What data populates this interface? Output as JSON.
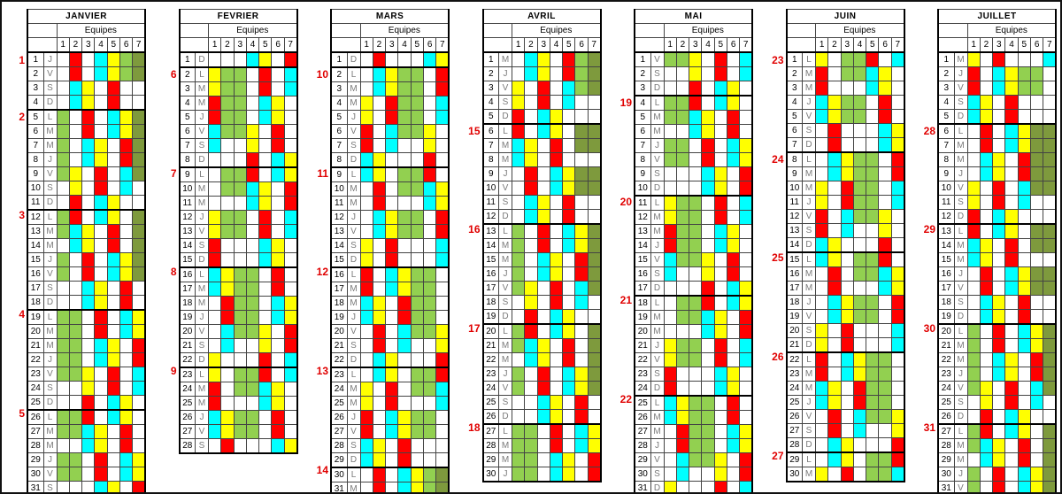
{
  "document": {
    "type": "shift-planning-calendar",
    "equipes_label": "Equipes",
    "equipe_numbers": [
      "1",
      "2",
      "3",
      "4",
      "5",
      "6",
      "7"
    ]
  },
  "colors": {
    "W": "#FFFFFF",
    "R": "#FF0000",
    "Y": "#FFFF00",
    "C": "#00FFFF",
    "G": "#92D050",
    "O": "#7E9A3D",
    "week_number": "#E00000",
    "day_letter": "#7A7A7A",
    "grid": "#444444"
  },
  "months": [
    {
      "name": "JANVIER",
      "letters": "JVSDLMMJVSDLMMJVSDLMMJVSDLMMJVS",
      "week_numbers": [
        [
          1,
          1
        ],
        [
          2,
          5
        ],
        [
          3,
          12
        ],
        [
          4,
          19
        ],
        [
          5,
          26
        ]
      ],
      "rows": [
        "WRWCYGO",
        "WRWCYGO",
        "WCYWRWW",
        "WCYWRWW",
        "GWRWCYO",
        "GWRWCYO",
        "GWCYWRO",
        "GWCYWRO",
        "GYWRWCO",
        "WYWRWCW",
        "WRWCYWW",
        "GRWCYWO",
        "GCYWRWO",
        "WCYWRWO",
        "GWRWCYO",
        "GWRWCYO",
        "WWCYWRW",
        "WWCYWRW",
        "GGWRWCY",
        "GGWRWCY",
        "GGWCYWR",
        "GGWCYWR",
        "GGYWRWC",
        "WWYWRWC",
        "WWRWCYW",
        "GGRWCYW",
        "GGCYWRW",
        "WWCYWRW",
        "GGWRWCY",
        "GGWRWCY",
        "WWWCYWR"
      ]
    },
    {
      "name": "FEVRIER",
      "letters": "DLMMJVSDLMMJVSDLMMJVSDLMMJVS",
      "week_numbers": [
        [
          6,
          2
        ],
        [
          7,
          9
        ],
        [
          8,
          16
        ],
        [
          9,
          23
        ]
      ],
      "rows": [
        "WWWCYWR",
        "YGGWRWC",
        "YGGWRWC",
        "RGGWCYW",
        "RGGWCYW",
        "CGGYWRW",
        "CWWYWRW",
        "WWWRWCY",
        "WGGRWCY",
        "WGGCYWR",
        "WWWCYWR",
        "YGGWRWC",
        "YGGWRWC",
        "RWWWCYW",
        "RWWWCYW",
        "CYGGWRW",
        "CYGGWRW",
        "WRGGWCY",
        "WRGGWCY",
        "WCGGYWR",
        "WCWWYWR",
        "YWWWRWC",
        "YWGGRWC",
        "RWGGCYW",
        "RWWWCYW",
        "CYGGWRW",
        "CYGGWRW",
        "WRWWWCY"
      ]
    },
    {
      "name": "MARS",
      "letters": "DLMMJVSDLMMJVSDLMMJVSDLMMJVSDLM",
      "week_numbers": [
        [
          10,
          2
        ],
        [
          11,
          9
        ],
        [
          12,
          16
        ],
        [
          13,
          23
        ],
        [
          14,
          30
        ]
      ],
      "rows": [
        "WRWWWCY",
        "WCYGGWR",
        "WCYGGWR",
        "YWRGGWC",
        "YWRGGWC",
        "RWCGGYW",
        "RWCWWYW",
        "CYWWWRW",
        "CYWGGRW",
        "WRWGGCY",
        "WRWWWCY",
        "WCYGGWR",
        "WCYGGWR",
        "YWRWWWC",
        "YWRWWWC",
        "RWCYGGW",
        "RWCYGGW",
        "CYWRGGW",
        "CYWRGGW",
        "WRWCGGY",
        "WRWCWWY",
        "WCYWWWR",
        "WCYWGGR",
        "YWRWGGC",
        "YWRWWWC",
        "RWCYGGW",
        "RWCYGGW",
        "CYWRWWW",
        "CYWRWWW",
        "WRWCYGO",
        "WRWCYGO"
      ]
    },
    {
      "name": "AVRIL",
      "letters": "MJVSDLMMJVSDLMMJVSDLMMJVSDLMMJ",
      "week_numbers": [
        [
          15,
          6
        ],
        [
          16,
          13
        ],
        [
          17,
          20
        ],
        [
          18,
          27
        ]
      ],
      "rows": [
        "WCYWRGO",
        "WCYWRGO",
        "YWRWCGO",
        "YWRWCWW",
        "RWCYWWW",
        "RWCYWOO",
        "CYWRWOO",
        "CYWRWWW",
        "WRWCYOO",
        "WRWCYOO",
        "WCYWRWW",
        "WCYWRWW",
        "GWRWCYO",
        "GWRWCYO",
        "GWCYWRO",
        "GWCYWRO",
        "GYWRWCO",
        "WYWRWCW",
        "WRWCYWW",
        "GRWCYWO",
        "GCYWRWO",
        "WCYWRWO",
        "GWRWCYO",
        "GWRWCYO",
        "WWCYWRW",
        "WWCYWRW",
        "GGWRWCY",
        "GGWRWCY",
        "GGWCYWR",
        "GGWCYWR"
      ]
    },
    {
      "name": "MAI",
      "letters": "VSDLMMJVSDLMMJVSDLMMJVSDLMMJVSD",
      "week_numbers": [
        [
          19,
          4
        ],
        [
          20,
          11
        ],
        [
          21,
          18
        ],
        [
          22,
          25
        ]
      ],
      "rows": [
        "GGYWRWC",
        "WWYWRWC",
        "WWRWCYW",
        "GGRWCYW",
        "GGCYWRW",
        "WWCYWRW",
        "GGWRWCY",
        "GGWRWCY",
        "WWWCYWR",
        "WWWCYWR",
        "YGGWRWC",
        "YGGWRWC",
        "RGGWCYW",
        "RGGWCYW",
        "CGGYWRW",
        "CWWYWRW",
        "WWWRWCY",
        "WGGRWCY",
        "WGGCYWR",
        "WWWCYWR",
        "YGGWRWC",
        "YGGWRWC",
        "RWWWCYW",
        "RWWWCYW",
        "CYGGWRW",
        "CYGGWRW",
        "WRGGWCY",
        "WRGGWCY",
        "WCGGYWR",
        "WCWWYWR",
        "YWWWRWC"
      ]
    },
    {
      "name": "JUIN",
      "letters": "LMMJVSDLMMJVSDLMMJVSDLMMJVSDLM",
      "week_numbers": [
        [
          23,
          1
        ],
        [
          24,
          8
        ],
        [
          25,
          15
        ],
        [
          26,
          22
        ],
        [
          27,
          29
        ]
      ],
      "rows": [
        "YWGGRWC",
        "RWGGCYW",
        "RWWWCYW",
        "CYGGWRW",
        "CYGGWRW",
        "WRWWWCY",
        "WRWWWCY",
        "WCYGGWR",
        "WCYGGWR",
        "YWRGGWC",
        "YWRGGWC",
        "RWCGGYW",
        "RWCWWYW",
        "CYWWWRW",
        "CYWGGRW",
        "WRWGGCY",
        "WRWWWCY",
        "WCYGGWR",
        "WCYGGWR",
        "YWRWWWC",
        "YWRWWWC",
        "RWCYGGW",
        "RWCYGGW",
        "CYWRGGW",
        "CYWRGGW",
        "WRWCGGY",
        "WRWCWWY",
        "WCYWWWR",
        "WCYWGGR",
        "YWRWGGC"
      ]
    },
    {
      "name": "JUILLET",
      "letters": "MJVSDLMMJVSDLMMJVSDLMMJVSDLMMJV",
      "week_numbers": [
        [
          28,
          6
        ],
        [
          29,
          13
        ],
        [
          30,
          20
        ],
        [
          31,
          27
        ]
      ],
      "rows": [
        "YWRWWWC",
        "RWCYGGW",
        "RWCYGGW",
        "CYWRWWW",
        "CYWRWWW",
        "WRWCYOO",
        "WRWCYOO",
        "WCYWROO",
        "WCYWROO",
        "YWRWCOO",
        "YWRWCWW",
        "RWCYWWW",
        "RWCYWOO",
        "CYWRWOO",
        "CYWRWWW",
        "WRWCYOO",
        "WRWCYOO",
        "WCYWRWW",
        "WCYWRWW",
        "GWRWCYO",
        "GWRWCYO",
        "GWCYWRO",
        "GWCYWRO",
        "GYWRWCO",
        "WYWRWCW",
        "WRWCYWW",
        "GRWCYWO",
        "GCYWRWO",
        "WCYWRWO",
        "GWRWCYO",
        "GWRWCYO"
      ]
    }
  ]
}
